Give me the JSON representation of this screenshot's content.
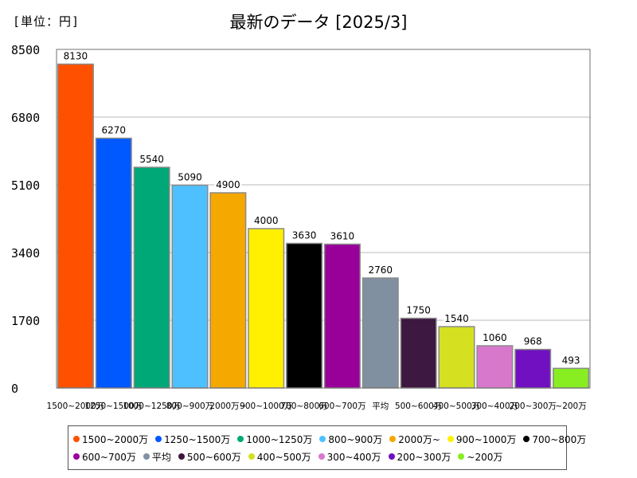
{
  "unit_label": "[単位：円]",
  "chart_data": {
    "type": "bar",
    "title": "最新のデータ [2025/3]",
    "xlabel": "",
    "ylabel": "",
    "ylim": [
      0,
      8500
    ],
    "yticks": [
      "0",
      "1700",
      "3400",
      "5100",
      "6800",
      "8500"
    ],
    "grid": true,
    "legend_position": "bottom",
    "categories": [
      "1500~2000万",
      "1250~1500万",
      "1000~1250万",
      "800~900万",
      "2000万~",
      "900~1000万",
      "700~800万",
      "600~700万",
      "平均",
      "500~600万",
      "400~500万",
      "300~400万",
      "200~300万",
      "~200万"
    ],
    "values": [
      8130,
      6270,
      5540,
      5090,
      4900,
      4000,
      3630,
      3610,
      2760,
      1750,
      1540,
      1060,
      968,
      493
    ],
    "value_labels": [
      "8130",
      "6270",
      "5540",
      "5090",
      "4900",
      "4000",
      "3630",
      "3610",
      "2760",
      "1750",
      "1540",
      "1060",
      "968",
      "493"
    ],
    "colors": [
      "#ff5000",
      "#0058ff",
      "#00a878",
      "#4fc0ff",
      "#f5a800",
      "#ffef00",
      "#000000",
      "#990099",
      "#8090a0",
      "#3d1840",
      "#d4e020",
      "#d878cc",
      "#7010c0",
      "#88ee22"
    ],
    "legend": [
      "1500~2000万",
      "1250~1500万",
      "1000~1250万",
      "800~900万",
      "2000万~",
      "900~1000万",
      "700~800万",
      "600~700万",
      "平均",
      "500~600万",
      "400~500万",
      "300~400万",
      "200~300万",
      "~200万"
    ]
  }
}
